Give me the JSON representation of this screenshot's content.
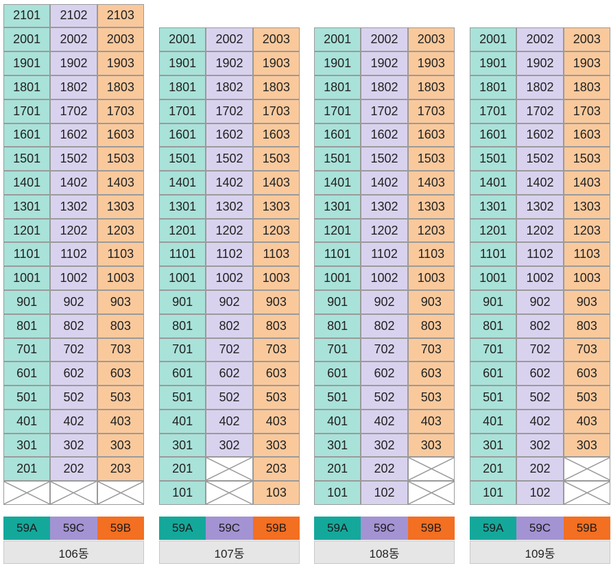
{
  "buildings": [
    {
      "name": "106동",
      "rows": [
        [
          "2101",
          "2102",
          "2103"
        ],
        [
          "2001",
          "2002",
          "2003"
        ],
        [
          "1901",
          "1902",
          "1903"
        ],
        [
          "1801",
          "1802",
          "1803"
        ],
        [
          "1701",
          "1702",
          "1703"
        ],
        [
          "1601",
          "1602",
          "1603"
        ],
        [
          "1501",
          "1502",
          "1503"
        ],
        [
          "1401",
          "1402",
          "1403"
        ],
        [
          "1301",
          "1302",
          "1303"
        ],
        [
          "1201",
          "1202",
          "1203"
        ],
        [
          "1101",
          "1102",
          "1103"
        ],
        [
          "1001",
          "1002",
          "1003"
        ],
        [
          "901",
          "902",
          "903"
        ],
        [
          "801",
          "802",
          "803"
        ],
        [
          "701",
          "702",
          "703"
        ],
        [
          "601",
          "602",
          "603"
        ],
        [
          "501",
          "502",
          "503"
        ],
        [
          "401",
          "402",
          "403"
        ],
        [
          "301",
          "302",
          "303"
        ],
        [
          "201",
          "202",
          "203"
        ],
        [
          null,
          null,
          null
        ]
      ]
    },
    {
      "name": "107동",
      "rows": [
        [
          "2001",
          "2002",
          "2003"
        ],
        [
          "1901",
          "1902",
          "1903"
        ],
        [
          "1801",
          "1802",
          "1803"
        ],
        [
          "1701",
          "1702",
          "1703"
        ],
        [
          "1601",
          "1602",
          "1603"
        ],
        [
          "1501",
          "1502",
          "1503"
        ],
        [
          "1401",
          "1402",
          "1403"
        ],
        [
          "1301",
          "1302",
          "1303"
        ],
        [
          "1201",
          "1202",
          "1203"
        ],
        [
          "1101",
          "1102",
          "1103"
        ],
        [
          "1001",
          "1002",
          "1003"
        ],
        [
          "901",
          "902",
          "903"
        ],
        [
          "801",
          "802",
          "803"
        ],
        [
          "701",
          "702",
          "703"
        ],
        [
          "601",
          "602",
          "603"
        ],
        [
          "501",
          "502",
          "503"
        ],
        [
          "401",
          "402",
          "403"
        ],
        [
          "301",
          "302",
          "303"
        ],
        [
          "201",
          null,
          "203"
        ],
        [
          "101",
          null,
          "103"
        ]
      ]
    },
    {
      "name": "108동",
      "rows": [
        [
          "2001",
          "2002",
          "2003"
        ],
        [
          "1901",
          "1902",
          "1903"
        ],
        [
          "1801",
          "1802",
          "1803"
        ],
        [
          "1701",
          "1702",
          "1703"
        ],
        [
          "1601",
          "1602",
          "1603"
        ],
        [
          "1501",
          "1502",
          "1503"
        ],
        [
          "1401",
          "1402",
          "1403"
        ],
        [
          "1301",
          "1302",
          "1303"
        ],
        [
          "1201",
          "1202",
          "1203"
        ],
        [
          "1101",
          "1102",
          "1103"
        ],
        [
          "1001",
          "1002",
          "1003"
        ],
        [
          "901",
          "902",
          "903"
        ],
        [
          "801",
          "802",
          "803"
        ],
        [
          "701",
          "702",
          "703"
        ],
        [
          "601",
          "602",
          "603"
        ],
        [
          "501",
          "502",
          "503"
        ],
        [
          "401",
          "402",
          "403"
        ],
        [
          "301",
          "302",
          "303"
        ],
        [
          "201",
          "202",
          null
        ],
        [
          "101",
          "102",
          null
        ]
      ]
    },
    {
      "name": "109동",
      "rows": [
        [
          "2001",
          "2002",
          "2003"
        ],
        [
          "1901",
          "1902",
          "1903"
        ],
        [
          "1801",
          "1802",
          "1803"
        ],
        [
          "1701",
          "1702",
          "1703"
        ],
        [
          "1601",
          "1602",
          "1603"
        ],
        [
          "1501",
          "1502",
          "1503"
        ],
        [
          "1401",
          "1402",
          "1403"
        ],
        [
          "1301",
          "1302",
          "1303"
        ],
        [
          "1201",
          "1202",
          "1203"
        ],
        [
          "1101",
          "1102",
          "1103"
        ],
        [
          "1001",
          "1002",
          "1003"
        ],
        [
          "901",
          "902",
          "903"
        ],
        [
          "801",
          "802",
          "803"
        ],
        [
          "701",
          "702",
          "703"
        ],
        [
          "601",
          "602",
          "603"
        ],
        [
          "501",
          "502",
          "503"
        ],
        [
          "401",
          "402",
          "403"
        ],
        [
          "301",
          "302",
          "303"
        ],
        [
          "201",
          "202",
          null
        ],
        [
          "101",
          "102",
          null
        ]
      ]
    }
  ],
  "legend": [
    "59A",
    "59C",
    "59B"
  ],
  "colors": {
    "cell": [
      "#a9e2d9",
      "#d9d2ee",
      "#f9c99c"
    ],
    "legend": [
      "#14a89b",
      "#a393d3",
      "#f36f21"
    ]
  }
}
